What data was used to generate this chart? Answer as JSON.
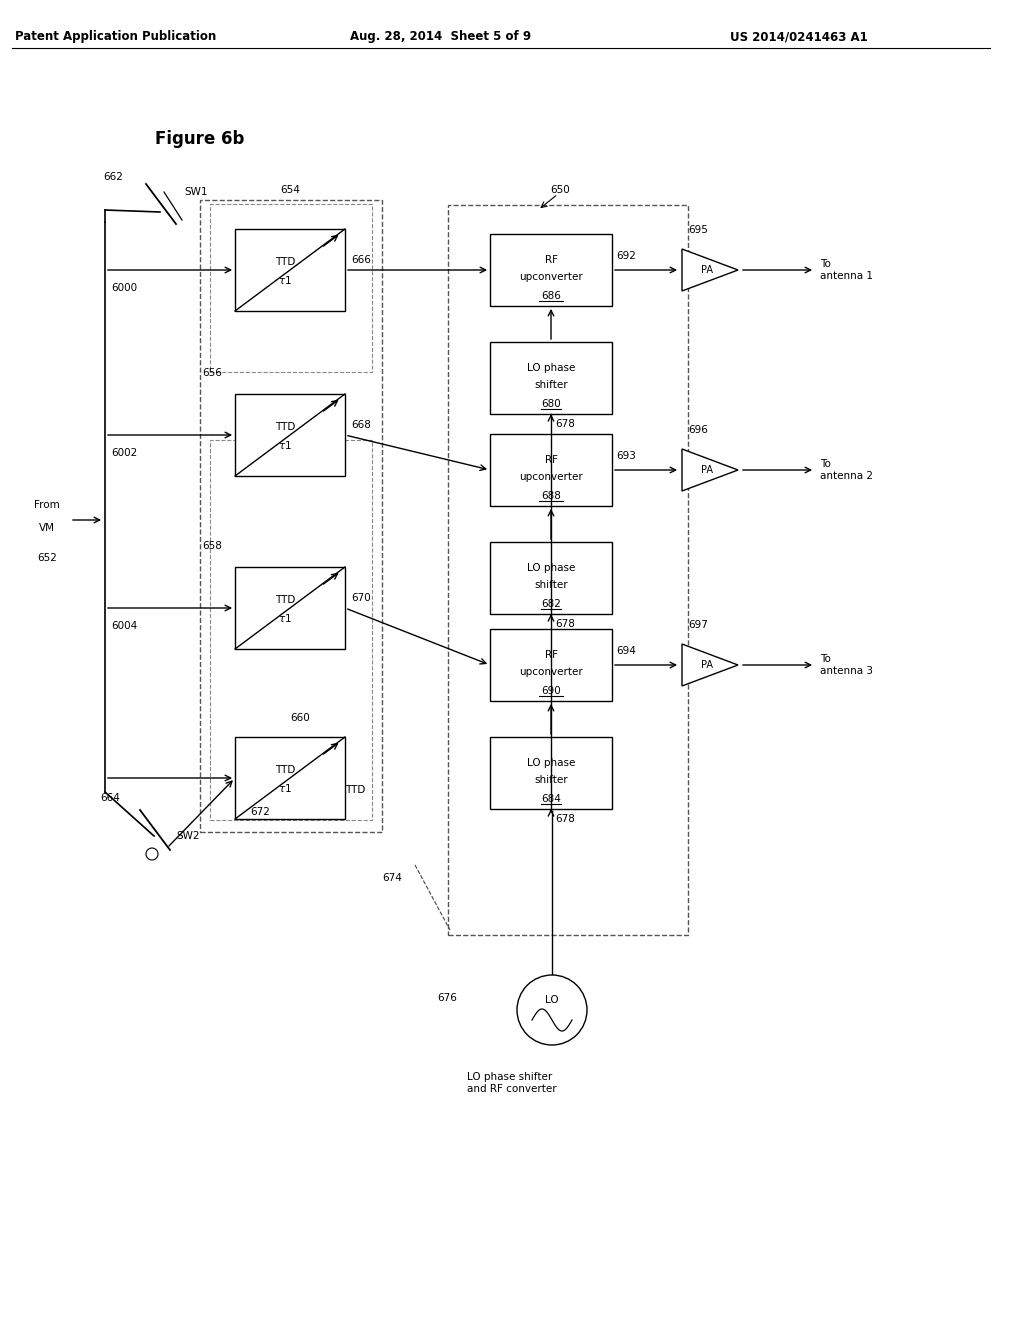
{
  "title": "Figure 6b",
  "header_left": "Patent Application Publication",
  "header_center": "Aug. 28, 2014  Sheet 5 of 9",
  "header_right": "US 2014/0241463 A1",
  "bg_color": "#ffffff",
  "line_color": "#000000",
  "rf_labels": [
    "686",
    "688",
    "690"
  ],
  "lo_labels": [
    "680",
    "682",
    "684"
  ],
  "pa_in_labels": [
    "692",
    "693",
    "694"
  ],
  "pa_out_labels": [
    "695",
    "696",
    "697"
  ],
  "ant_labels": [
    "To\nantenna 1",
    "To\nantenna 2",
    "To\nantenna 3"
  ]
}
